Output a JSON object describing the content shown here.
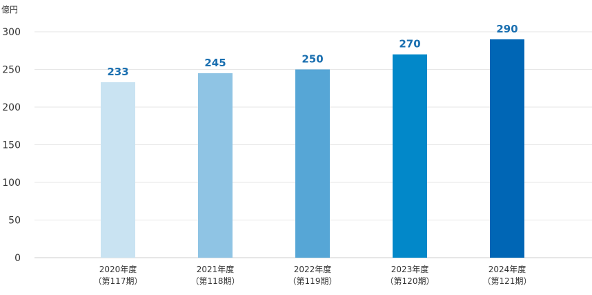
{
  "chart_data": {
    "type": "bar",
    "unit_label": "億円",
    "categories": [
      [
        "2020年度",
        "（第117期）"
      ],
      [
        "2021年度",
        "（第118期）"
      ],
      [
        "2022年度",
        "（第119期）"
      ],
      [
        "2023年度",
        "（第120期）"
      ],
      [
        "2024年度",
        "（第121期）"
      ]
    ],
    "values": [
      233,
      245,
      250,
      270,
      290
    ],
    "data_labels": [
      "233",
      "245",
      "250",
      "270",
      "290"
    ],
    "bar_colors": [
      "#c9e3f2",
      "#8fc4e4",
      "#56a6d6",
      "#0288c9",
      "#0066b5"
    ],
    "label_color": "#1a6fb0",
    "ylim": [
      0,
      300
    ],
    "yticks": [
      "0",
      "50",
      "100",
      "150",
      "200",
      "250",
      "300"
    ],
    "ytick_values": [
      0,
      50,
      100,
      150,
      200,
      250,
      300
    ],
    "grid": true,
    "legend": "none"
  }
}
